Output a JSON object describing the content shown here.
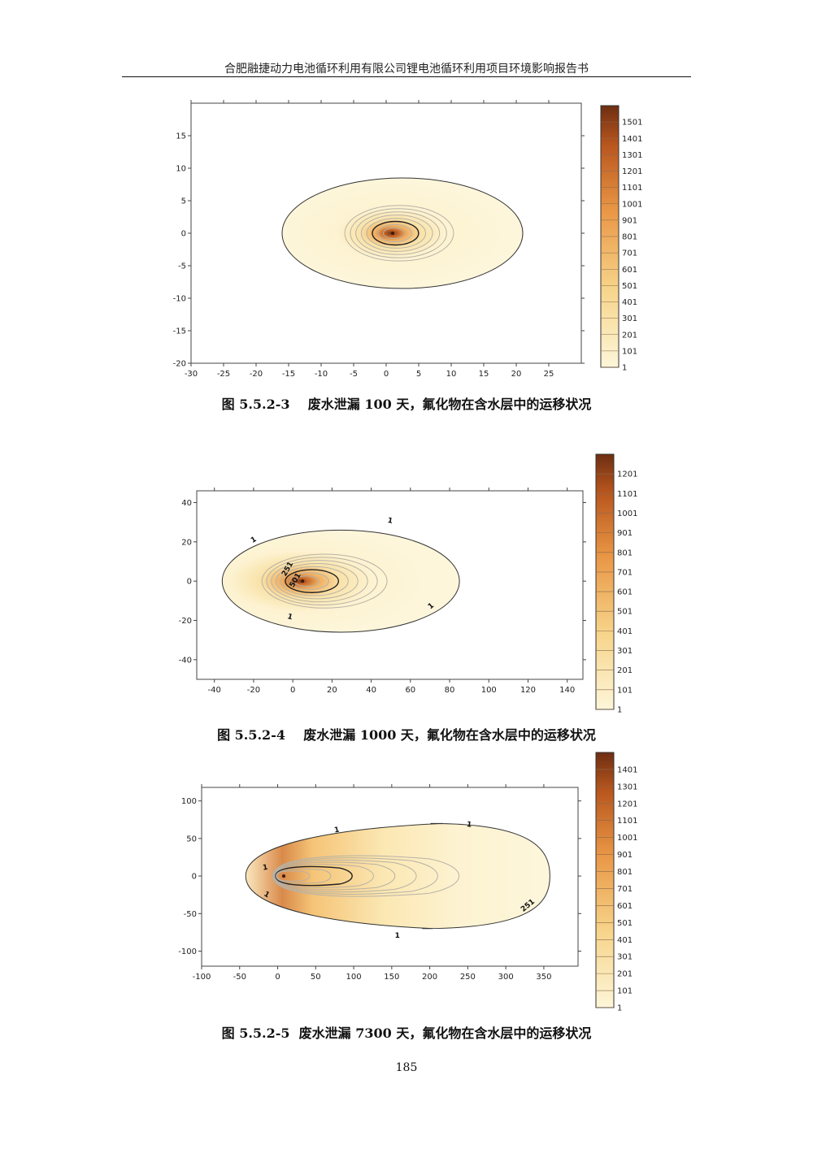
{
  "header": {
    "title": "合肥融捷动力电池循环利用有限公司锂电池循环利用项目环境影响报告书"
  },
  "figures": [
    {
      "caption": "图 5.5.2-3    废水泄漏 100 天，氟化物在含水层中的运移状况"
    },
    {
      "caption": "图 5.5.2-4    废水泄漏 1000 天，氟化物在含水层中的运移状况"
    },
    {
      "caption": "图 5.5.2-5  废水泄漏 7300 天，氟化物在含水层中的运移状况"
    }
  ],
  "page": {
    "number": "185"
  },
  "chart_data": [
    {
      "type": "heatmap",
      "title": "",
      "x_ticks": [
        -30,
        -25,
        -20,
        -15,
        -10,
        -5,
        0,
        5,
        10,
        15,
        20,
        25
      ],
      "y_ticks": [
        15,
        10,
        5,
        0,
        -5,
        -10,
        -15,
        -20
      ],
      "xlim": [
        -30,
        30
      ],
      "ylim": [
        -20,
        20
      ],
      "plume": {
        "source_x": 1,
        "outer_x": [
          -16,
          21
        ],
        "outer_y": [
          -8.5,
          8.5
        ]
      },
      "contour_labels": [],
      "colorbar": {
        "labels": [
          "1501",
          "1401",
          "1301",
          "1201",
          "1101",
          "1001",
          "901",
          "801",
          "701",
          "601",
          "501",
          "401",
          "301",
          "201",
          "101",
          "1"
        ],
        "min": 1,
        "max": 1601
      }
    },
    {
      "type": "heatmap",
      "title": "",
      "x_ticks": [
        -40,
        -20,
        0,
        20,
        40,
        60,
        80,
        100,
        120,
        140
      ],
      "y_ticks": [
        40,
        20,
        0,
        -20,
        -40
      ],
      "xlim": [
        -49,
        148
      ],
      "ylim": [
        -50,
        46
      ],
      "plume": {
        "source_x": 5,
        "outer_x": [
          -36,
          85
        ],
        "outer_y": [
          -26,
          26
        ]
      },
      "contour_labels": [
        "1",
        "1",
        "1",
        "1",
        "251",
        "501"
      ],
      "colorbar": {
        "labels": [
          "1201",
          "1101",
          "1001",
          "901",
          "801",
          "701",
          "601",
          "501",
          "401",
          "301",
          "201",
          "101",
          "1"
        ],
        "min": 1,
        "max": 1301
      }
    },
    {
      "type": "heatmap",
      "title": "",
      "x_ticks": [
        -100,
        -50,
        0,
        50,
        100,
        150,
        200,
        250,
        300,
        350
      ],
      "y_ticks": [
        100,
        50,
        0,
        -50,
        -100
      ],
      "xlim": [
        -100,
        395
      ],
      "ylim": [
        -120,
        118
      ],
      "plume": {
        "source_x": 8,
        "outer_x": [
          -42,
          358
        ],
        "outer_y": [
          -70,
          70
        ]
      },
      "contour_labels": [
        "1",
        "1",
        "1",
        "1",
        "1",
        "251"
      ],
      "colorbar": {
        "labels": [
          "1401",
          "1301",
          "1201",
          "1101",
          "1001",
          "901",
          "801",
          "701",
          "601",
          "501",
          "401",
          "301",
          "201",
          "101",
          "1"
        ],
        "min": 1,
        "max": 1501
      }
    }
  ]
}
